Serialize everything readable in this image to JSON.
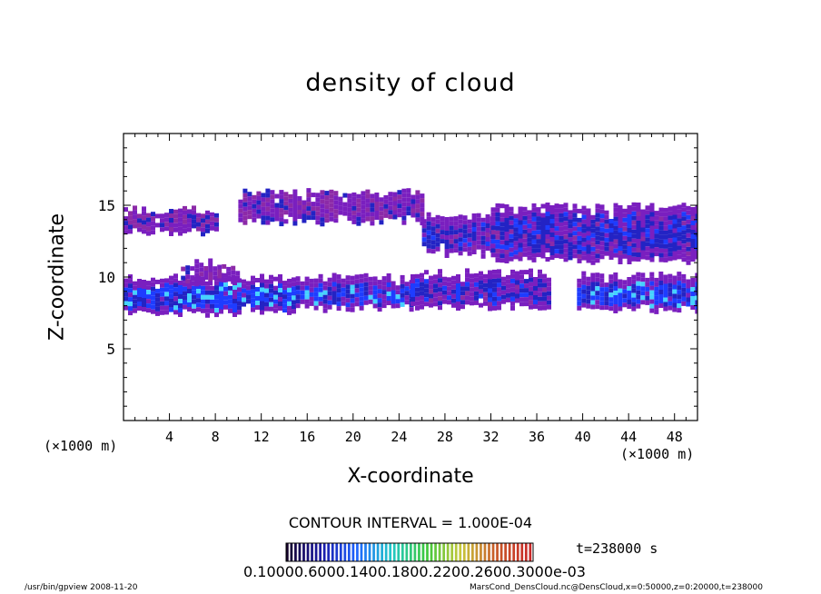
{
  "chart_data": {
    "type": "heatmap",
    "title": "density of cloud",
    "xlabel": "X-coordinate",
    "ylabel": "Z-coordinate",
    "x_unit": "(×1000 m)",
    "xlim": [
      0,
      50
    ],
    "ylim": [
      0,
      20
    ],
    "x_ticks": [
      4,
      8,
      12,
      16,
      20,
      24,
      28,
      32,
      36,
      40,
      44,
      48
    ],
    "y_ticks": [
      5,
      10,
      15
    ],
    "contour_interval": "CONTOUR INTERVAL = 1.000E-04",
    "time": "t=238000 s",
    "colorbar_labels": "0.10000.6000.1400.1800.2200.2600.3000e-03",
    "colorbar_colors": [
      "#14002a",
      "#1a1aa8",
      "#1e64ff",
      "#22c8c8",
      "#3cc83c",
      "#c8c83c",
      "#c85a28",
      "#c82828"
    ],
    "colors": {
      "purple": "#7a1fbf",
      "magenta": "#8c2aa8",
      "deep_blue": "#2323c4",
      "blue": "#1e3cff",
      "cyan": "#46d2ff"
    },
    "cloud_layers": [
      {
        "name": "lower layer",
        "segments": [
          {
            "x": [
              0.0,
              15.0
            ],
            "z": [
              7.6,
              10.0
            ],
            "core": "blue"
          },
          {
            "x": [
              5.0,
              10.0
            ],
            "z": [
              9.8,
              11.0
            ],
            "core": "purple"
          },
          {
            "x": [
              15.0,
              25.0
            ],
            "z": [
              8.0,
              10.0
            ],
            "core": "blue"
          },
          {
            "x": [
              25.0,
              37.0
            ],
            "z": [
              8.0,
              10.3
            ],
            "core": "deep_blue"
          },
          {
            "x": [
              39.5,
              50.0
            ],
            "z": [
              7.9,
              10.1
            ],
            "core": "blue"
          }
        ]
      },
      {
        "name": "upper layer",
        "segments": [
          {
            "x": [
              0.0,
              8.0
            ],
            "z": [
              13.2,
              14.7
            ],
            "core": "purple"
          },
          {
            "x": [
              10.0,
              26.0
            ],
            "z": [
              14.0,
              15.9
            ],
            "core": "purple"
          },
          {
            "x": [
              26.0,
              32.0
            ],
            "z": [
              11.8,
              14.3
            ],
            "core": "deep_blue"
          },
          {
            "x": [
              32.0,
              50.0
            ],
            "z": [
              11.3,
              14.9
            ],
            "core": "deep_blue"
          }
        ]
      }
    ]
  },
  "footer": {
    "left": "/usr/bin/gpview   2008-11-20",
    "right": "MarsCond_DensCloud.nc@DensCloud,x=0:50000,z=0:20000,t=238000"
  }
}
